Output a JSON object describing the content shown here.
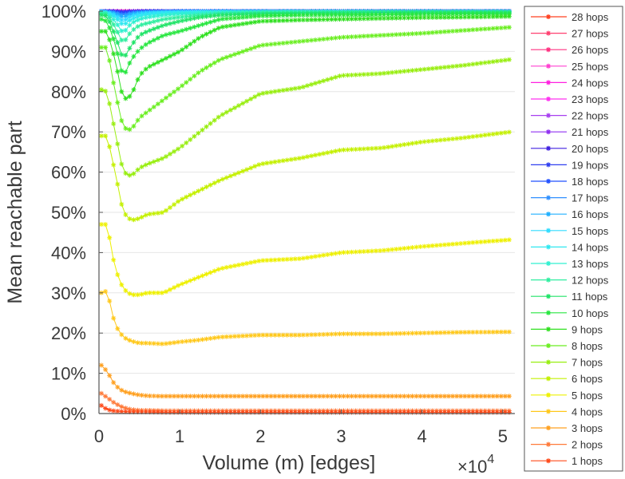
{
  "chart_data": {
    "type": "line",
    "xlabel": "Volume (m) [edges]",
    "x_multiplier_label": "×10",
    "x_multiplier_exp": "4",
    "ylabel": "Mean reachable part",
    "xlim": [
      0,
      5.15
    ],
    "ylim": [
      0,
      100
    ],
    "xticks": [
      "0",
      "1",
      "2",
      "3",
      "4",
      "5"
    ],
    "yticks": [
      "0%",
      "10%",
      "20%",
      "30%",
      "40%",
      "50%",
      "60%",
      "70%",
      "80%",
      "90%",
      "100%"
    ],
    "grid": "horizontal",
    "legend_position": "outside-right",
    "x": [
      0.03,
      0.1,
      0.2,
      0.3,
      0.4,
      0.5,
      0.6,
      0.8,
      1,
      1.25,
      1.5,
      2,
      2.5,
      3,
      3.5,
      4,
      4.5,
      5.1
    ],
    "series": [
      {
        "name": "1 hops",
        "color": "#ff4a1a",
        "values": [
          2,
          1,
          0.6,
          0.5,
          0.4,
          0.4,
          0.4,
          0.3,
          0.3,
          0.3,
          0.3,
          0.3,
          0.3,
          0.3,
          0.3,
          0.3,
          0.3,
          0.3
        ]
      },
      {
        "name": "2 hops",
        "color": "#ff7a3a",
        "values": [
          5,
          4,
          2.5,
          1.5,
          1,
          0.8,
          0.8,
          0.7,
          0.7,
          0.7,
          0.7,
          0.7,
          0.7,
          0.7,
          0.7,
          0.7,
          0.7,
          0.7
        ]
      },
      {
        "name": "3 hops",
        "color": "#ffa020",
        "values": [
          12,
          10.5,
          7,
          5.5,
          5,
          4.6,
          4.4,
          4.3,
          4.3,
          4.3,
          4.3,
          4.3,
          4.3,
          4.3,
          4.3,
          4.3,
          4.3,
          4.3
        ]
      },
      {
        "name": "4 hops",
        "color": "#ffc81a",
        "values": [
          30,
          30.5,
          22,
          19,
          18,
          17.5,
          17.5,
          17.3,
          17.8,
          18.3,
          19,
          19.5,
          19.5,
          19.8,
          19.8,
          20,
          20.2,
          20.3
        ]
      },
      {
        "name": "5 hops",
        "color": "#eef000",
        "values": [
          47,
          47,
          36,
          31,
          29.5,
          29.5,
          30,
          30,
          32,
          34,
          36,
          38,
          38.5,
          40,
          40.5,
          41.5,
          42.3,
          43.2
        ]
      },
      {
        "name": "6 hops",
        "color": "#c4f000",
        "values": [
          69,
          69,
          60,
          50,
          48,
          48.5,
          49.5,
          50,
          53,
          55.5,
          58,
          62,
          63.5,
          65.5,
          66,
          67.5,
          68.5,
          70
        ]
      },
      {
        "name": "7 hops",
        "color": "#98ee10",
        "values": [
          80.5,
          80,
          70,
          60,
          59,
          61,
          62,
          63.5,
          66,
          70,
          74,
          79.5,
          81,
          84,
          84.5,
          85.5,
          86.5,
          88
        ]
      },
      {
        "name": "8 hops",
        "color": "#6aee20",
        "values": [
          91,
          91,
          80,
          71,
          70.5,
          73.5,
          75,
          78,
          81,
          85,
          88,
          91.5,
          92.5,
          93.5,
          94,
          94.5,
          95.2,
          96
        ]
      },
      {
        "name": "9 hops",
        "color": "#30e020",
        "values": [
          95,
          95,
          88,
          78,
          79,
          84,
          86,
          88,
          90,
          93.5,
          96,
          97.5,
          97.8,
          98,
          98.2,
          98.4,
          98.5,
          98.7
        ]
      },
      {
        "name": "10 hops",
        "color": "#28e640",
        "values": [
          98,
          97.5,
          92,
          83.5,
          88,
          90.5,
          92,
          94,
          95,
          96.5,
          98,
          98.8,
          99,
          99,
          99.1,
          99.2,
          99.3,
          99.3
        ]
      },
      {
        "name": "11 hops",
        "color": "#20e468",
        "values": [
          99,
          98.8,
          94,
          88,
          91.5,
          94,
          95,
          96.5,
          97.5,
          98.5,
          99,
          99.3,
          99.4,
          99.5,
          99.5,
          99.6,
          99.6,
          99.6
        ]
      },
      {
        "name": "12 hops",
        "color": "#30eea0",
        "values": [
          99.5,
          99.3,
          96,
          92,
          95,
          96.5,
          97,
          98,
          98.5,
          99,
          99.4,
          99.6,
          99.7,
          99.7,
          99.8,
          99.8,
          99.8,
          99.8
        ]
      },
      {
        "name": "13 hops",
        "color": "#30f0d0",
        "values": [
          99.7,
          99.5,
          97.5,
          94.5,
          97,
          98,
          98.5,
          99,
          99.3,
          99.5,
          99.7,
          99.8,
          99.9,
          99.9,
          99.9,
          99.9,
          99.9,
          99.9
        ]
      },
      {
        "name": "14 hops",
        "color": "#30e8f0",
        "values": [
          99.8,
          99.6,
          98.5,
          96.5,
          98,
          98.8,
          99.2,
          99.5,
          99.6,
          99.7,
          99.8,
          99.9,
          99.9,
          99.9,
          99.9,
          99.9,
          99.9,
          99.9
        ]
      },
      {
        "name": "15 hops",
        "color": "#30dcff",
        "values": [
          99.9,
          99.7,
          99,
          97.5,
          98.8,
          99.3,
          99.5,
          99.7,
          99.8,
          99.9,
          99.9,
          99.9,
          99.9,
          99.9,
          99.9,
          99.9,
          99.9,
          99.9
        ]
      },
      {
        "name": "16 hops",
        "color": "#20b0ff",
        "values": [
          99.9,
          99.8,
          99.4,
          98.5,
          99.3,
          99.6,
          99.7,
          99.8,
          99.9,
          99.9,
          99.9,
          99.9,
          99.9,
          99.9,
          99.9,
          99.9,
          99.9,
          99.9
        ]
      },
      {
        "name": "17 hops",
        "color": "#3090ff",
        "values": [
          99.9,
          99.9,
          99.6,
          99,
          99.5,
          99.7,
          99.8,
          99.9,
          99.9,
          99.9,
          99.9,
          99.9,
          99.9,
          99.9,
          99.9,
          99.9,
          99.9,
          99.9
        ]
      },
      {
        "name": "18 hops",
        "color": "#2050ff",
        "values": [
          100,
          99.9,
          99.7,
          99.4,
          99.7,
          99.8,
          99.9,
          99.9,
          100,
          100,
          100,
          100,
          100,
          100,
          100,
          100,
          100,
          100
        ]
      },
      {
        "name": "19 hops",
        "color": "#3040f0",
        "values": [
          100,
          99.9,
          99.8,
          99.6,
          99.8,
          99.9,
          99.9,
          100,
          100,
          100,
          100,
          100,
          100,
          100,
          100,
          100,
          100,
          100
        ]
      },
      {
        "name": "20 hops",
        "color": "#4020e0",
        "values": [
          100,
          100,
          99.9,
          99.7,
          99.9,
          99.9,
          100,
          100,
          100,
          100,
          100,
          100,
          100,
          100,
          100,
          100,
          100,
          100
        ]
      },
      {
        "name": "21 hops",
        "color": "#9030f0",
        "values": [
          100,
          100,
          99.9,
          99.8,
          99.9,
          100,
          100,
          100,
          100,
          100,
          100,
          100,
          100,
          100,
          100,
          100,
          100,
          100
        ]
      },
      {
        "name": "22 hops",
        "color": "#a840f0",
        "values": [
          100,
          100,
          100,
          99.85,
          100,
          100,
          100,
          100,
          100,
          100,
          100,
          100,
          100,
          100,
          100,
          100,
          100,
          100
        ]
      },
      {
        "name": "23 hops",
        "color": "#ff30f0",
        "values": [
          100,
          100,
          100,
          99.9,
          100,
          100,
          100,
          100,
          100,
          100,
          100,
          100,
          100,
          100,
          100,
          100,
          100,
          100
        ]
      },
      {
        "name": "24 hops",
        "color": "#ff20e0",
        "values": [
          100,
          100,
          100,
          99.9,
          100,
          100,
          100,
          100,
          100,
          100,
          100,
          100,
          100,
          100,
          100,
          100,
          100,
          100
        ]
      },
      {
        "name": "25 hops",
        "color": "#ff40d0",
        "values": [
          100,
          100,
          100,
          99.95,
          100,
          100,
          100,
          100,
          100,
          100,
          100,
          100,
          100,
          100,
          100,
          100,
          100,
          100
        ]
      },
      {
        "name": "26 hops",
        "color": "#ff3080",
        "values": [
          100,
          100,
          100,
          99.95,
          100,
          100,
          100,
          100,
          100,
          100,
          100,
          100,
          100,
          100,
          100,
          100,
          100,
          100
        ]
      },
      {
        "name": "27 hops",
        "color": "#ff4070",
        "values": [
          100,
          100,
          100,
          99.95,
          100,
          100,
          100,
          100,
          100,
          100,
          100,
          100,
          100,
          100,
          100,
          100,
          100,
          100
        ]
      },
      {
        "name": "28 hops",
        "color": "#ff4020",
        "values": [
          100,
          100,
          100,
          99.95,
          100,
          100,
          100,
          100,
          100,
          100,
          100,
          100,
          100,
          100,
          100,
          100,
          100,
          100
        ]
      }
    ]
  }
}
